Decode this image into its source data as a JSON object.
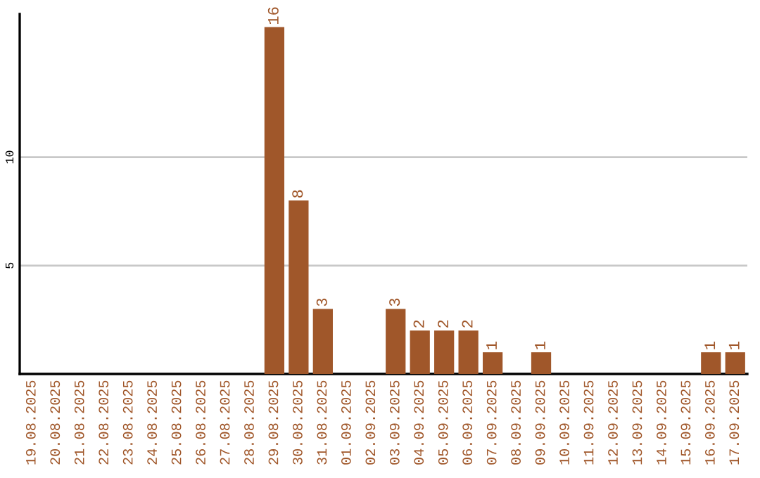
{
  "chart_data": {
    "type": "bar",
    "categories": [
      "19.08.2025",
      "20.08.2025",
      "21.08.2025",
      "22.08.2025",
      "23.08.2025",
      "24.08.2025",
      "25.08.2025",
      "26.08.2025",
      "27.08.2025",
      "28.08.2025",
      "29.08.2025",
      "30.08.2025",
      "31.08.2025",
      "01.09.2025",
      "02.09.2025",
      "03.09.2025",
      "04.09.2025",
      "05.09.2025",
      "06.09.2025",
      "07.09.2025",
      "08.09.2025",
      "09.09.2025",
      "10.09.2025",
      "11.09.2025",
      "12.09.2025",
      "13.09.2025",
      "14.09.2025",
      "15.09.2025",
      "16.09.2025",
      "17.09.2025"
    ],
    "values": [
      0,
      0,
      0,
      0,
      0,
      0,
      0,
      0,
      0,
      0,
      16,
      8,
      3,
      0,
      0,
      3,
      2,
      2,
      2,
      1,
      0,
      1,
      0,
      0,
      0,
      0,
      0,
      0,
      1,
      1
    ],
    "value_labels": [
      null,
      null,
      null,
      null,
      null,
      null,
      null,
      null,
      null,
      null,
      "16",
      "8",
      "3",
      null,
      null,
      "3",
      "2",
      "2",
      "2",
      "1",
      null,
      "1",
      null,
      null,
      null,
      null,
      null,
      null,
      "1",
      "1"
    ],
    "color": "#a0572a",
    "ylim": [
      0,
      16.6
    ],
    "yticks": [
      5,
      10
    ],
    "grid": "y"
  }
}
